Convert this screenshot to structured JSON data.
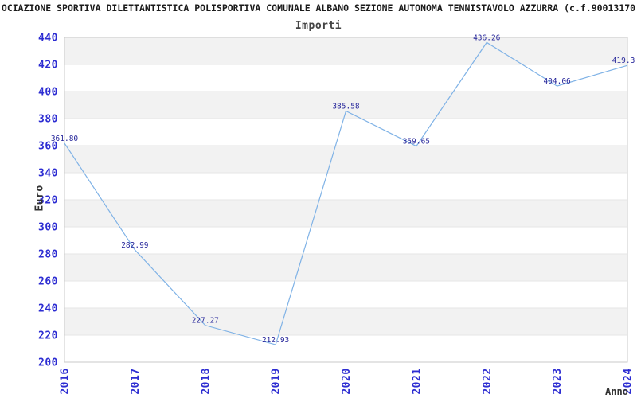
{
  "title": "OCIAZIONE SPORTIVA DILETTANTISTICA POLISPORTIVA COMUNALE ALBANO SEZIONE AUTONOMA TENNISTAVOLO AZZURRA (c.f.90013170",
  "chart_data": {
    "type": "line",
    "title": "Importi",
    "xlabel": "Anno",
    "ylabel": "Euro",
    "categories": [
      "2016",
      "2017",
      "2018",
      "2019",
      "2020",
      "2021",
      "2022",
      "2023",
      "2024"
    ],
    "values": [
      361.8,
      282.99,
      227.27,
      212.93,
      385.58,
      359.65,
      436.26,
      404.06,
      419.3
    ],
    "point_labels": [
      "361.80",
      "282.99",
      "227.27",
      "212.93",
      "385.58",
      "359.65",
      "436.26",
      "404.06",
      "419.3"
    ],
    "ylim": [
      200,
      440
    ],
    "ytick_step": 20,
    "yticks": [
      200,
      220,
      240,
      260,
      280,
      300,
      320,
      340,
      360,
      380,
      400,
      420,
      440
    ],
    "grid": true,
    "legend": false,
    "band_alternating": true,
    "colors": {
      "line": "#7fb2e6",
      "band": "#f2f2f2",
      "grid": "#e6e6e6",
      "border": "#c9c9c9",
      "tick_label": "#2d2dd2",
      "point_label": "#27279b",
      "axis_title": "#333333",
      "title": "#1a1a1a",
      "subtitle": "#444444"
    }
  }
}
